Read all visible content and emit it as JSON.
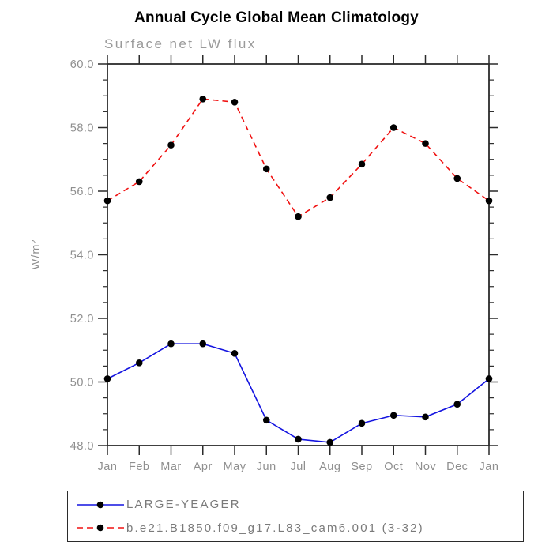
{
  "page": {
    "background": "#ffffff"
  },
  "colors": {
    "title_text": "#000000",
    "axis_text": "#8f8f8f",
    "subtitle_text": "#9a9a9a",
    "legend_text": "#7a7a7a",
    "frame": "#2b2b2b",
    "marker": "#000000",
    "series_blue": "#1414e0",
    "series_red": "#f01010"
  },
  "chart_data": {
    "type": "line",
    "title": "Annual Cycle Global Mean Climatology",
    "subtitle": "Surface net LW flux",
    "xlabel": "",
    "ylabel": "W/m²",
    "categories": [
      "Jan",
      "Feb",
      "Mar",
      "Apr",
      "May",
      "Jun",
      "Jul",
      "Aug",
      "Sep",
      "Oct",
      "Nov",
      "Dec",
      "Jan"
    ],
    "ylim": [
      48.0,
      60.0
    ],
    "ytick_step": 2.0,
    "ytick_minor_step": 0.5,
    "ytick_labels": [
      "48.0",
      "50.0",
      "52.0",
      "54.0",
      "56.0",
      "58.0",
      "60.0"
    ],
    "grid": "off",
    "legend_position": "bottom-left-box",
    "series": [
      {
        "name": "LARGE-YEAGER",
        "color": "#1414e0",
        "line_style": "solid",
        "marker": "filled-circle",
        "marker_color": "#000000",
        "values": [
          50.1,
          50.6,
          51.2,
          51.2,
          50.9,
          48.8,
          48.2,
          48.1,
          48.7,
          48.95,
          48.9,
          49.3,
          50.1
        ]
      },
      {
        "name": "b.e21.B1850.f09_g17.L83_cam6.001 (3-32)",
        "color": "#f01010",
        "line_style": "dashed",
        "marker": "filled-circle",
        "marker_color": "#000000",
        "values": [
          55.7,
          56.3,
          57.45,
          58.9,
          58.8,
          56.7,
          55.2,
          55.8,
          56.85,
          58.0,
          57.5,
          56.4,
          55.7
        ]
      }
    ]
  }
}
